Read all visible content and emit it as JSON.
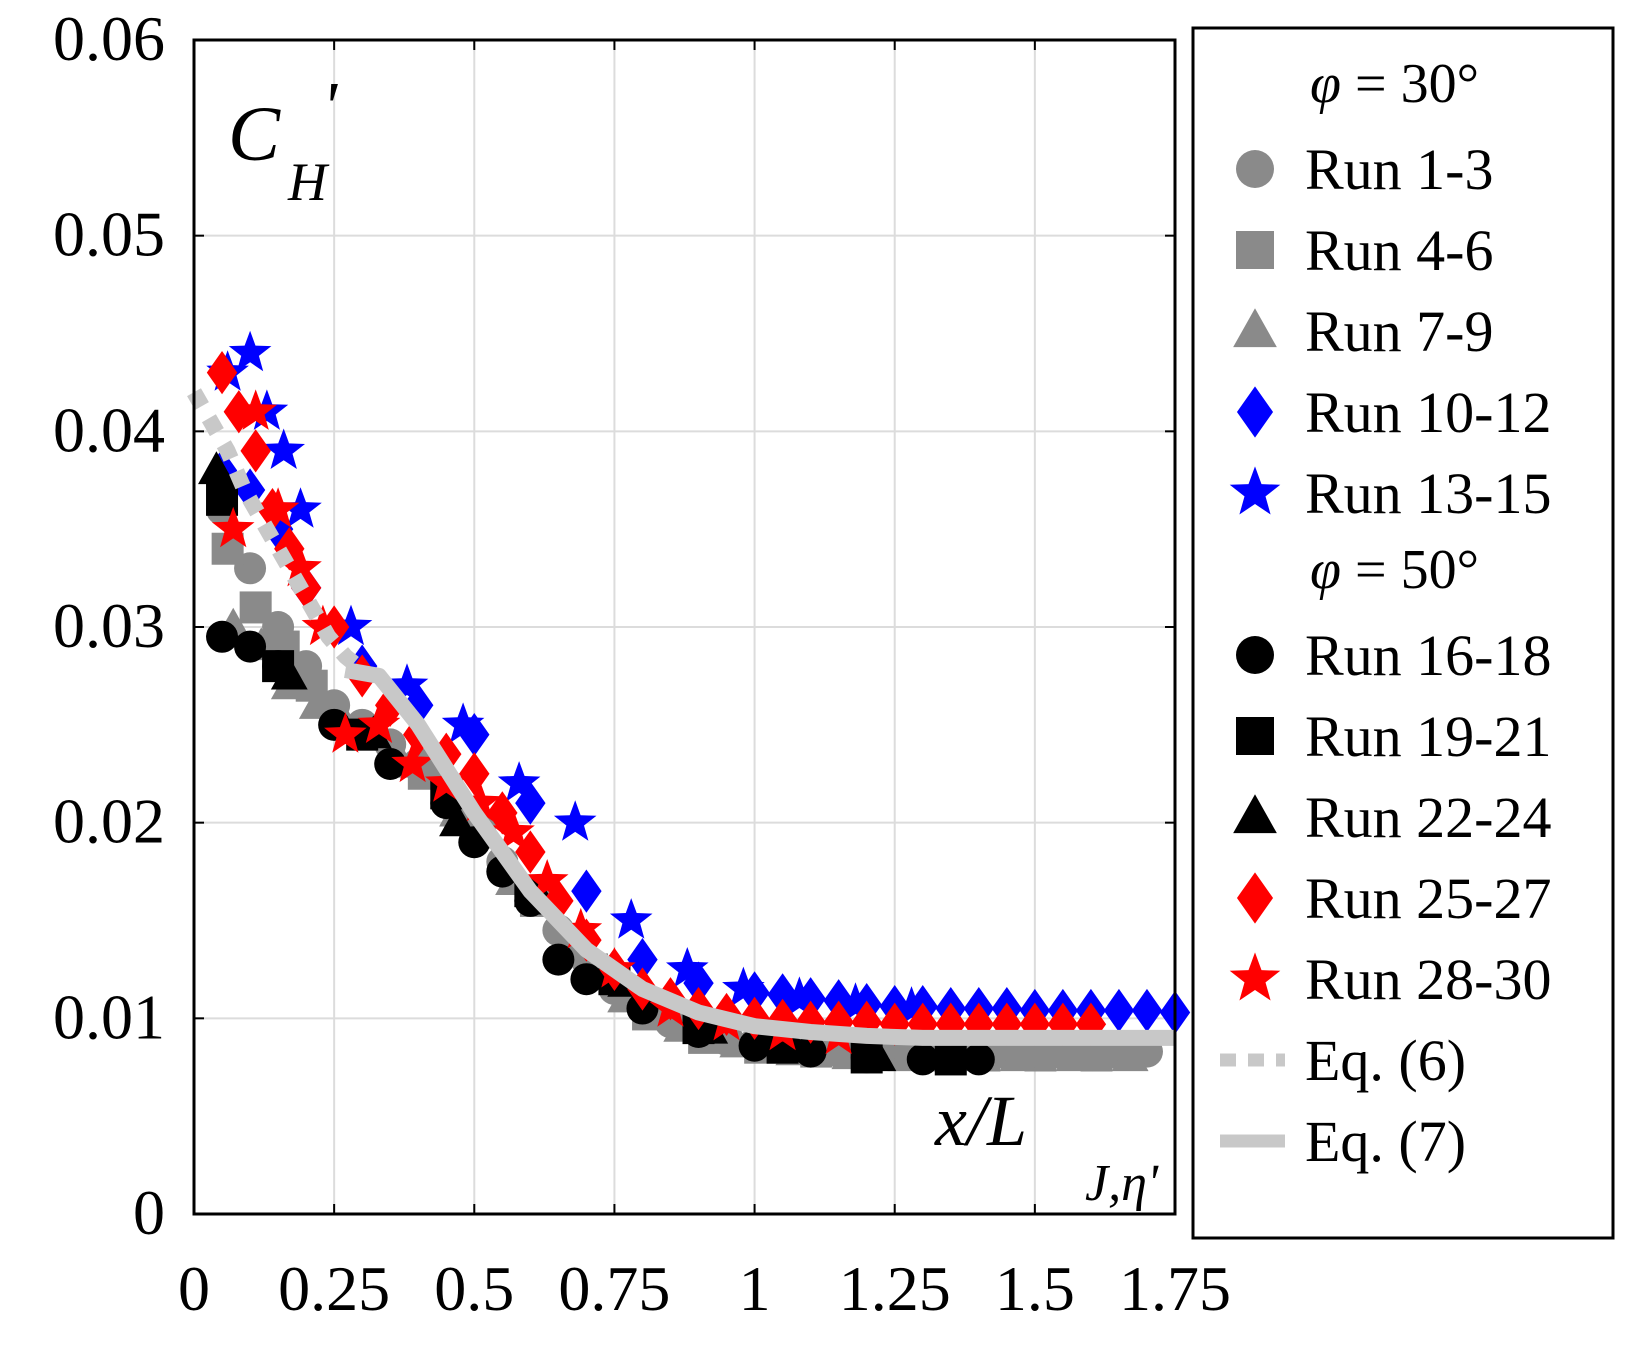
{
  "chart_data": {
    "type": "scatter",
    "ylabel_main": "C",
    "ylabel_sub": "H",
    "ylabel_prime": "'",
    "xlabel_main": "x/L",
    "xlabel_sub": "J,η'",
    "xlim": [
      0,
      1.75
    ],
    "ylim": [
      0,
      0.06
    ],
    "xticks": [
      0,
      0.25,
      0.5,
      0.75,
      1,
      1.25,
      1.5,
      1.75
    ],
    "xtick_labels": [
      "0",
      "0.25",
      "0.5",
      "0.75",
      "1",
      "1.25",
      "1.5",
      "1.75"
    ],
    "yticks": [
      0,
      0.01,
      0.02,
      0.03,
      0.04,
      0.05,
      0.06
    ],
    "ytick_labels": [
      "0",
      "0.01",
      "0.02",
      "0.03",
      "0.04",
      "0.05",
      "0.06"
    ],
    "grid": true,
    "legend_position": "outside-right",
    "legend_groups": [
      {
        "header": "φ = 30°",
        "header_symbol": "φ",
        "header_value": "= 30°",
        "items": [
          {
            "label": "Run 1-3",
            "marker": "circle",
            "color": "#8a8a8a"
          },
          {
            "label": "Run 4-6",
            "marker": "square",
            "color": "#8a8a8a"
          },
          {
            "label": "Run 7-9",
            "marker": "triangle",
            "color": "#8a8a8a"
          },
          {
            "label": "Run 10-12",
            "marker": "diamond",
            "color": "#0000ff"
          },
          {
            "label": "Run 13-15",
            "marker": "star",
            "color": "#0000ff"
          }
        ]
      },
      {
        "header": "φ = 50°",
        "header_symbol": "φ",
        "header_value": "= 50°",
        "items": [
          {
            "label": "Run 16-18",
            "marker": "circle",
            "color": "#000000"
          },
          {
            "label": "Run 19-21",
            "marker": "square",
            "color": "#000000"
          },
          {
            "label": "Run 22-24",
            "marker": "triangle",
            "color": "#000000"
          },
          {
            "label": "Run 25-27",
            "marker": "diamond",
            "color": "#ff0000"
          },
          {
            "label": "Run 28-30",
            "marker": "star",
            "color": "#ff0000"
          }
        ]
      }
    ],
    "line_legend": [
      {
        "label": "Eq. (6)",
        "style": "dashed",
        "color": "#c8c8c8"
      },
      {
        "label": "Eq. (7)",
        "style": "solid",
        "color": "#c8c8c8"
      }
    ],
    "series": [
      {
        "name": "Run 1-3",
        "marker": "circle",
        "color": "#8a8a8a",
        "x": [
          0.05,
          0.1,
          0.15,
          0.2,
          0.25,
          0.3,
          0.35,
          0.4,
          0.45,
          0.5,
          0.55,
          0.6,
          0.65,
          0.7,
          0.75,
          0.8,
          0.85,
          0.9,
          0.95,
          1.0,
          1.05,
          1.1,
          1.15,
          1.2,
          1.25,
          1.3,
          1.35,
          1.4,
          1.45,
          1.5,
          1.55,
          1.6,
          1.65,
          1.7
        ],
        "y": [
          0.036,
          0.033,
          0.03,
          0.028,
          0.026,
          0.025,
          0.024,
          0.023,
          0.022,
          0.02,
          0.018,
          0.016,
          0.0145,
          0.013,
          0.0115,
          0.0105,
          0.0098,
          0.0093,
          0.0089,
          0.0087,
          0.0085,
          0.0084,
          0.0083,
          0.0083,
          0.0082,
          0.0082,
          0.0082,
          0.0082,
          0.0082,
          0.0082,
          0.0082,
          0.0082,
          0.0082,
          0.0083
        ]
      },
      {
        "name": "Run 4-6",
        "marker": "square",
        "color": "#8a8a8a",
        "x": [
          0.06,
          0.11,
          0.16,
          0.21,
          0.31,
          0.41,
          0.51,
          0.61,
          0.71,
          0.81,
          0.91,
          1.01,
          1.11,
          1.21,
          1.31,
          1.41,
          1.51,
          1.61
        ],
        "y": [
          0.034,
          0.031,
          0.029,
          0.027,
          0.0245,
          0.0225,
          0.0195,
          0.016,
          0.0125,
          0.0102,
          0.009,
          0.0085,
          0.0083,
          0.0082,
          0.0081,
          0.0081,
          0.0081,
          0.0081
        ]
      },
      {
        "name": "Run 7-9",
        "marker": "triangle",
        "color": "#8a8a8a",
        "x": [
          0.07,
          0.12,
          0.17,
          0.22,
          0.27,
          0.37,
          0.47,
          0.57,
          0.67,
          0.77,
          0.87,
          0.97,
          1.07,
          1.17,
          1.27,
          1.37,
          1.47,
          1.57,
          1.67
        ],
        "y": [
          0.03,
          0.029,
          0.027,
          0.026,
          0.025,
          0.023,
          0.0205,
          0.017,
          0.0135,
          0.011,
          0.0095,
          0.0087,
          0.0083,
          0.0081,
          0.008,
          0.008,
          0.008,
          0.008,
          0.008
        ]
      },
      {
        "name": "Run 10-12",
        "marker": "diamond",
        "color": "#0000ff",
        "x": [
          0.05,
          0.1,
          0.15,
          0.2,
          0.3,
          0.4,
          0.5,
          0.6,
          0.7,
          0.8,
          0.9,
          1.0,
          1.05,
          1.1,
          1.15,
          1.2,
          1.25,
          1.3,
          1.35,
          1.4,
          1.45,
          1.5,
          1.55,
          1.6,
          1.65,
          1.7,
          1.75
        ],
        "y": [
          0.038,
          0.037,
          0.035,
          0.032,
          0.028,
          0.026,
          0.0245,
          0.021,
          0.0165,
          0.013,
          0.0118,
          0.0113,
          0.0112,
          0.011,
          0.0109,
          0.0107,
          0.0106,
          0.0106,
          0.0105,
          0.0105,
          0.0105,
          0.0104,
          0.0104,
          0.0104,
          0.0104,
          0.0104,
          0.0103
        ]
      },
      {
        "name": "Run 13-15",
        "marker": "star",
        "color": "#0000ff",
        "x": [
          0.06,
          0.1,
          0.13,
          0.16,
          0.19,
          0.28,
          0.38,
          0.48,
          0.58,
          0.68,
          0.78,
          0.88,
          0.98,
          1.08,
          1.18,
          1.28
        ],
        "y": [
          0.043,
          0.044,
          0.041,
          0.039,
          0.036,
          0.03,
          0.027,
          0.025,
          0.022,
          0.02,
          0.015,
          0.0125,
          0.0115,
          0.011,
          0.0107,
          0.0105
        ]
      },
      {
        "name": "Run 16-18",
        "marker": "circle",
        "color": "#000000",
        "x": [
          0.05,
          0.1,
          0.15,
          0.25,
          0.35,
          0.45,
          0.5,
          0.55,
          0.6,
          0.65,
          0.7,
          0.8,
          0.9,
          1.0,
          1.1,
          1.2,
          1.3,
          1.4
        ],
        "y": [
          0.0295,
          0.029,
          0.028,
          0.025,
          0.023,
          0.021,
          0.019,
          0.0175,
          0.016,
          0.013,
          0.012,
          0.0105,
          0.0093,
          0.0086,
          0.0083,
          0.008,
          0.0079,
          0.0079
        ]
      },
      {
        "name": "Run 19-21",
        "marker": "square",
        "color": "#000000",
        "x": [
          0.05,
          0.15,
          0.3,
          0.45,
          0.6,
          0.75,
          0.9,
          1.05,
          1.2,
          1.35
        ],
        "y": [
          0.0365,
          0.028,
          0.0245,
          0.0215,
          0.0165,
          0.012,
          0.0095,
          0.0085,
          0.008,
          0.0079
        ]
      },
      {
        "name": "Run 22-24",
        "marker": "triangle",
        "color": "#000000",
        "x": [
          0.04,
          0.17,
          0.32,
          0.47,
          0.62,
          0.77,
          0.92,
          1.07,
          1.22
        ],
        "y": [
          0.038,
          0.0275,
          0.0245,
          0.02,
          0.016,
          0.0118,
          0.0094,
          0.0085,
          0.008
        ]
      },
      {
        "name": "Run 25-27",
        "marker": "diamond",
        "color": "#ff0000",
        "x": [
          0.05,
          0.08,
          0.11,
          0.14,
          0.17,
          0.2,
          0.25,
          0.3,
          0.35,
          0.4,
          0.45,
          0.5,
          0.55,
          0.6,
          0.65,
          0.7,
          0.75,
          0.8,
          0.85,
          0.9,
          0.95,
          1.0,
          1.05,
          1.1,
          1.15,
          1.2,
          1.25,
          1.3,
          1.35,
          1.4,
          1.45,
          1.5,
          1.55,
          1.6
        ],
        "y": [
          0.043,
          0.041,
          0.039,
          0.036,
          0.034,
          0.032,
          0.03,
          0.0275,
          0.026,
          0.0245,
          0.0235,
          0.0225,
          0.0205,
          0.0185,
          0.016,
          0.014,
          0.0125,
          0.0115,
          0.011,
          0.0105,
          0.0102,
          0.01,
          0.0099,
          0.0098,
          0.0098,
          0.0098,
          0.0097,
          0.0097,
          0.0097,
          0.0097,
          0.0097,
          0.0097,
          0.0097,
          0.0097
        ]
      },
      {
        "name": "Run 28-30",
        "marker": "star",
        "color": "#ff0000",
        "x": [
          0.07,
          0.11,
          0.15,
          0.19,
          0.23,
          0.27,
          0.33,
          0.39,
          0.45,
          0.51,
          0.57,
          0.63,
          0.69,
          0.75,
          0.85,
          0.95,
          1.05,
          1.15
        ],
        "y": [
          0.035,
          0.041,
          0.036,
          0.033,
          0.03,
          0.0245,
          0.025,
          0.023,
          0.022,
          0.021,
          0.0195,
          0.017,
          0.0145,
          0.0125,
          0.0105,
          0.0098,
          0.0093,
          0.0091
        ]
      },
      {
        "name": "Eq. (6)",
        "line": "dashed",
        "color": "#c8c8c8",
        "x": [
          0.0,
          0.03,
          0.06,
          0.09,
          0.12,
          0.15,
          0.18,
          0.21,
          0.24,
          0.27,
          0.3
        ],
        "y": [
          0.042,
          0.0405,
          0.039,
          0.037,
          0.0355,
          0.034,
          0.0325,
          0.031,
          0.0295,
          0.0285,
          0.0278
        ]
      },
      {
        "name": "Eq. (7)",
        "line": "solid",
        "color": "#c8c8c8",
        "x": [
          0.27,
          0.33,
          0.4,
          0.5,
          0.6,
          0.7,
          0.8,
          0.9,
          1.0,
          1.1,
          1.2,
          1.3,
          1.4,
          1.5,
          1.6,
          1.75
        ],
        "y": [
          0.0278,
          0.0275,
          0.025,
          0.0205,
          0.0165,
          0.0135,
          0.0115,
          0.0103,
          0.0096,
          0.0093,
          0.0091,
          0.009,
          0.009,
          0.009,
          0.009,
          0.009
        ]
      }
    ]
  }
}
